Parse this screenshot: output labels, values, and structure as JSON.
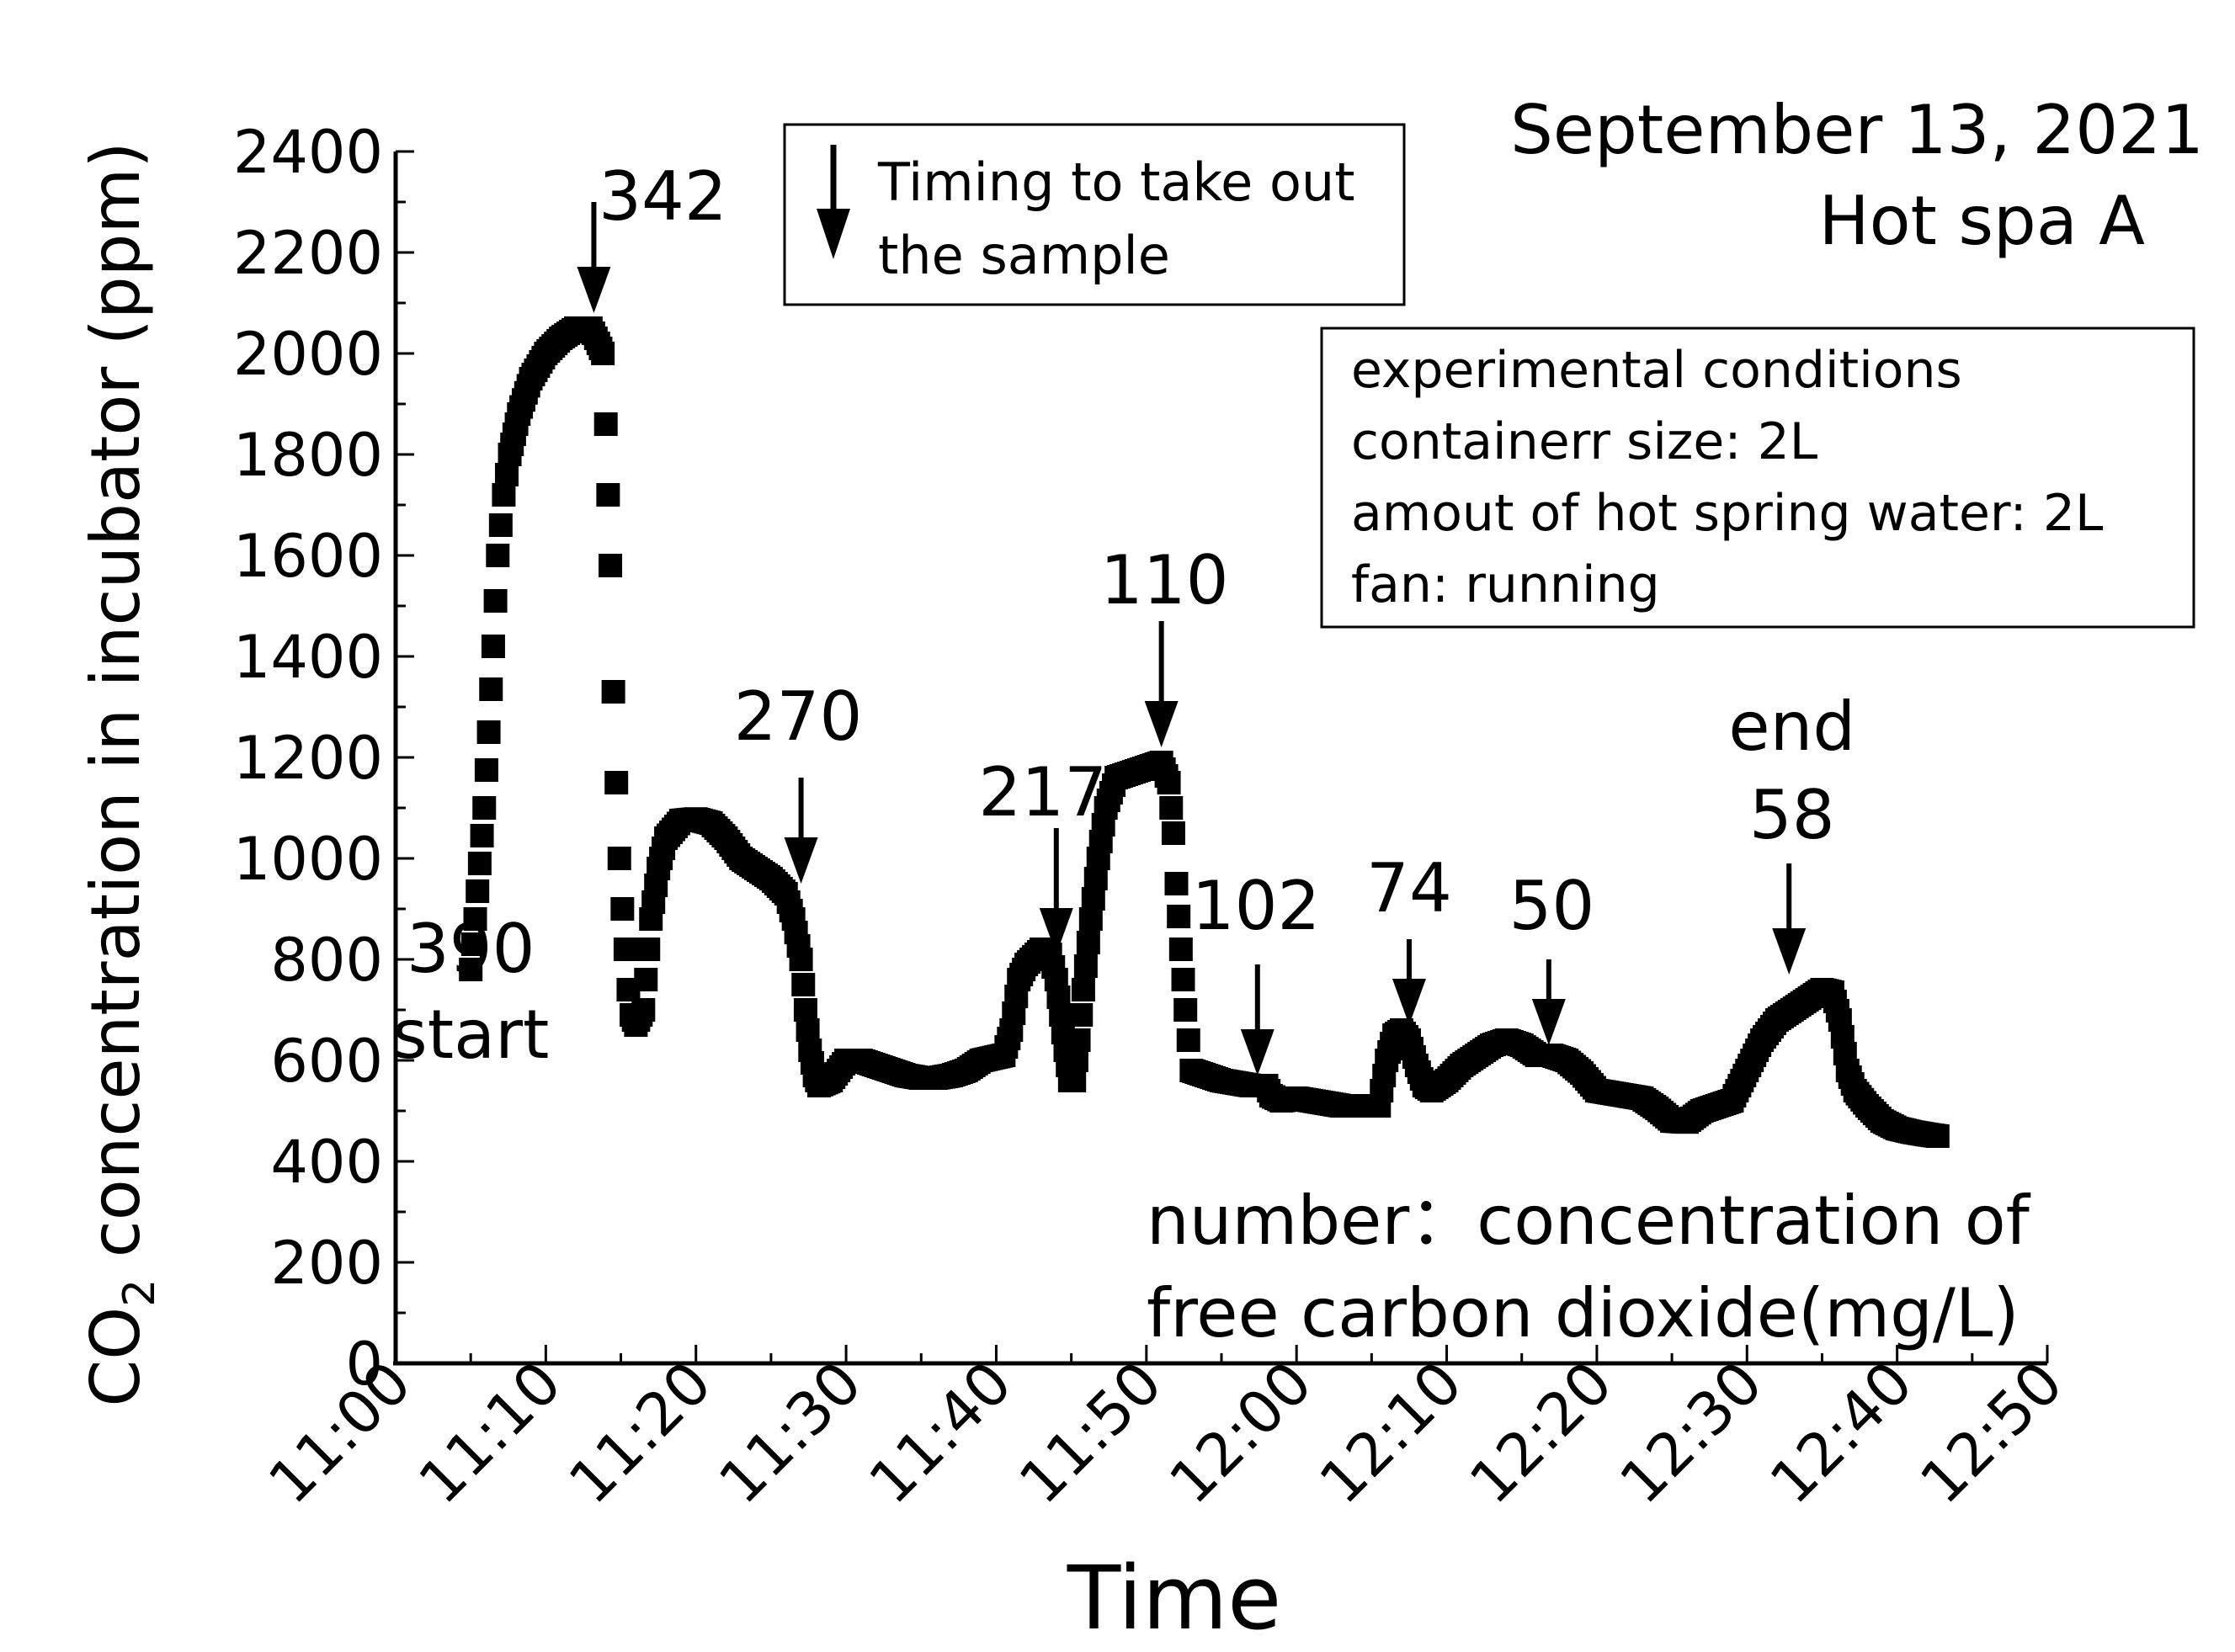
{
  "chart_data": {
    "type": "scatter",
    "title": "September 13, 2021",
    "subtitle": "Hot spa A",
    "xlabel": "Time",
    "ylabel_main": "CO",
    "ylabel_sub": "2",
    "ylabel_rest": " concentration in incubator (ppm)",
    "xlim": [
      0,
      110
    ],
    "ylim": [
      0,
      2400
    ],
    "x_ticks": [
      {
        "t": 0,
        "label": "11:00"
      },
      {
        "t": 10,
        "label": "11:10"
      },
      {
        "t": 20,
        "label": "11:20"
      },
      {
        "t": 30,
        "label": "11:30"
      },
      {
        "t": 40,
        "label": "11:40"
      },
      {
        "t": 50,
        "label": "11:50"
      },
      {
        "t": 60,
        "label": "12:00"
      },
      {
        "t": 70,
        "label": "12:10"
      },
      {
        "t": 80,
        "label": "12:20"
      },
      {
        "t": 90,
        "label": "12:30"
      },
      {
        "t": 100,
        "label": "12:40"
      },
      {
        "t": 110,
        "label": "12:50"
      }
    ],
    "y_ticks": [
      "0",
      "200",
      "400",
      "600",
      "800",
      "1000",
      "1200",
      "1400",
      "1600",
      "1800",
      "2000",
      "2200",
      "2400"
    ],
    "keypoints": [
      [
        5,
        780
      ],
      [
        5.3,
        880
      ],
      [
        5.6,
        990
      ],
      [
        5.9,
        1100
      ],
      [
        6.2,
        1250
      ],
      [
        6.5,
        1420
      ],
      [
        6.8,
        1600
      ],
      [
        7.2,
        1720
      ],
      [
        7.6,
        1800
      ],
      [
        8.2,
        1880
      ],
      [
        9,
        1950
      ],
      [
        10,
        2000
      ],
      [
        11,
        2030
      ],
      [
        12,
        2050
      ],
      [
        13,
        2050
      ],
      [
        13.5,
        2020
      ],
      [
        13.8,
        2000
      ],
      [
        14,
        1860
      ],
      [
        14.3,
        1580
      ],
      [
        14.5,
        1330
      ],
      [
        14.7,
        1150
      ],
      [
        14.9,
        1000
      ],
      [
        15.1,
        900
      ],
      [
        15.3,
        820
      ],
      [
        15.5,
        740
      ],
      [
        15.7,
        690
      ],
      [
        16,
        670
      ],
      [
        16.5,
        700
      ],
      [
        17,
        880
      ],
      [
        17.5,
        980
      ],
      [
        18,
        1040
      ],
      [
        19,
        1075
      ],
      [
        20,
        1078
      ],
      [
        21,
        1070
      ],
      [
        22,
        1040
      ],
      [
        23,
        1000
      ],
      [
        24,
        980
      ],
      [
        25,
        960
      ],
      [
        26,
        930
      ],
      [
        26.5,
        880
      ],
      [
        27,
        800
      ],
      [
        27.3,
        700
      ],
      [
        27.6,
        620
      ],
      [
        27.9,
        570
      ],
      [
        28.2,
        550
      ],
      [
        29,
        560
      ],
      [
        30,
        600
      ],
      [
        31,
        600
      ],
      [
        32,
        590
      ],
      [
        33,
        580
      ],
      [
        34,
        570
      ],
      [
        35,
        565
      ],
      [
        36,
        565
      ],
      [
        37,
        570
      ],
      [
        38,
        580
      ],
      [
        39,
        600
      ],
      [
        40.5,
        610
      ],
      [
        41,
        660
      ],
      [
        41.5,
        760
      ],
      [
        42,
        790
      ],
      [
        43,
        820
      ],
      [
        43.6,
        810
      ],
      [
        44,
        760
      ],
      [
        44.3,
        690
      ],
      [
        44.6,
        620
      ],
      [
        44.9,
        560
      ],
      [
        45.2,
        560
      ],
      [
        45.5,
        640
      ],
      [
        45.8,
        740
      ],
      [
        46.3,
        880
      ],
      [
        46.8,
        1000
      ],
      [
        47.3,
        1100
      ],
      [
        48,
        1160
      ],
      [
        49,
        1170
      ],
      [
        50,
        1180
      ],
      [
        51,
        1190
      ],
      [
        51.5,
        1150
      ],
      [
        51.8,
        1050
      ],
      [
        52,
        950
      ],
      [
        52.3,
        820
      ],
      [
        52.6,
        700
      ],
      [
        53,
        580
      ],
      [
        54,
        570
      ],
      [
        55,
        560
      ],
      [
        56,
        555
      ],
      [
        57,
        550
      ],
      [
        58,
        550
      ],
      [
        58.3,
        530
      ],
      [
        59,
        520
      ],
      [
        60,
        525
      ],
      [
        61,
        520
      ],
      [
        62,
        515
      ],
      [
        63,
        510
      ],
      [
        64,
        510
      ],
      [
        65,
        510
      ],
      [
        65.5,
        510
      ],
      [
        66,
        600
      ],
      [
        66.5,
        650
      ],
      [
        67,
        660
      ],
      [
        67.5,
        640
      ],
      [
        68,
        590
      ],
      [
        68.5,
        550
      ],
      [
        69,
        540
      ],
      [
        70,
        560
      ],
      [
        71,
        590
      ],
      [
        72,
        610
      ],
      [
        73,
        630
      ],
      [
        74,
        640
      ],
      [
        75,
        630
      ],
      [
        76,
        610
      ],
      [
        77,
        610
      ],
      [
        78,
        600
      ],
      [
        79,
        575
      ],
      [
        80,
        540
      ],
      [
        81,
        535
      ],
      [
        82,
        530
      ],
      [
        83,
        525
      ],
      [
        84,
        505
      ],
      [
        85,
        480
      ],
      [
        86,
        478
      ],
      [
        87,
        500
      ],
      [
        88,
        510
      ],
      [
        89,
        520
      ],
      [
        90,
        580
      ],
      [
        91,
        640
      ],
      [
        92,
        680
      ],
      [
        93,
        700
      ],
      [
        94,
        720
      ],
      [
        95,
        740
      ],
      [
        95.7,
        735
      ],
      [
        96.2,
        680
      ],
      [
        96.7,
        580
      ],
      [
        97.2,
        540
      ],
      [
        98,
        510
      ],
      [
        99,
        480
      ],
      [
        100,
        465
      ],
      [
        101,
        458
      ],
      [
        102,
        453
      ],
      [
        102.7,
        450
      ]
    ],
    "annotations": [
      {
        "label": "390",
        "t": 5,
        "v": 775
      },
      {
        "label": "start",
        "t": 5,
        "v": 605
      },
      {
        "label": "342",
        "t": 17.8,
        "v": 2265
      },
      {
        "label": "270",
        "t": 26.8,
        "v": 1235
      },
      {
        "label": "217",
        "t": 43.1,
        "v": 1085
      },
      {
        "label": "110",
        "t": 51.2,
        "v": 1505
      },
      {
        "label": "102",
        "t": 57.3,
        "v": 860
      },
      {
        "label": "74",
        "t": 67.5,
        "v": 895
      },
      {
        "label": "50",
        "t": 77,
        "v": 860
      },
      {
        "label": "end",
        "t": 93,
        "v": 1215
      },
      {
        "label": "58",
        "t": 93,
        "v": 1040
      }
    ],
    "arrows": [
      {
        "t": 13.2,
        "v_from": 2300,
        "v_to": 2080
      },
      {
        "t": 27,
        "v_from": 1160,
        "v_to": 950
      },
      {
        "t": 44,
        "v_from": 1060,
        "v_to": 810
      },
      {
        "t": 51,
        "v_from": 1470,
        "v_to": 1220
      },
      {
        "t": 57.4,
        "v_from": 790,
        "v_to": 570
      },
      {
        "t": 67.5,
        "v_from": 840,
        "v_to": 670
      },
      {
        "t": 76.8,
        "v_from": 800,
        "v_to": 630
      },
      {
        "t": 92.8,
        "v_from": 990,
        "v_to": 770
      }
    ]
  },
  "legend": {
    "line1": "Timing to take out",
    "line2": "the sample"
  },
  "conditions": {
    "line1": "experimental conditions",
    "line2": "containerr size: 2L",
    "line3": "amout of hot spring water: 2L",
    "line4": "fan: running"
  },
  "note": {
    "line1": "number：concentration of",
    "line2": "free carbon dioxide(mg/L)"
  }
}
